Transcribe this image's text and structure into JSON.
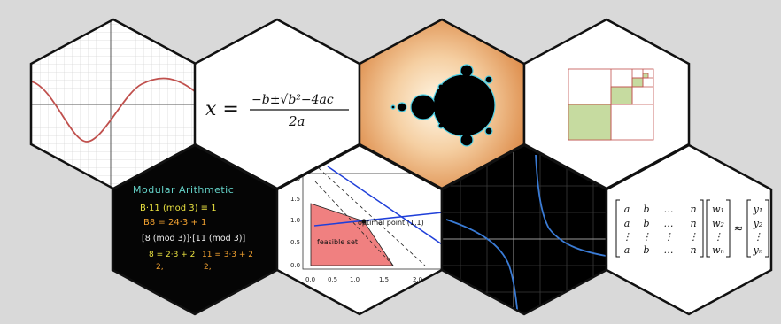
{
  "colors": {
    "background": "#d9d9d9",
    "hex_border": "#111111",
    "sine_curve": "#c0504d",
    "lp_line": "#1f3fd9",
    "feasible_fill": "#f08080",
    "square_fill": "#c6dba0",
    "square_stroke": "#c0504d",
    "chalk_title": "#64d2c8",
    "chalk_white": "#f0f0f0",
    "chalk_orange": "#f0a030",
    "chalk_yellow": "#e8e040",
    "dark_curve": "#3a7bd5"
  },
  "tiles": {
    "quadratic": {
      "lhs": "x =",
      "numerator": "−b±√b²−4ac",
      "denominator": "2a"
    },
    "chalkboard": {
      "title": "Modular Arithmetic",
      "line1": "B·11 (mod 3) ≡ 1",
      "line2": "B8 = 24·3 + 1",
      "line3": "[8 (mod 3)]·[11 (mod 3)]",
      "line4a": "8 = 2·3 + 2",
      "line4b": "11 = 3·3 + 2",
      "sub_a": "2,",
      "sub_b": "2,"
    },
    "lp": {
      "point_label": "optimal point (1,1)",
      "region_label": "feasible set",
      "x_ticks": [
        "0.0",
        "0.5",
        "1.0",
        "1.5",
        "2.0"
      ],
      "y_ticks": [
        "0.0",
        "0.5",
        "1.0",
        "1.5",
        "2.0"
      ]
    },
    "matrix": {
      "row1": [
        "a",
        "b",
        "…",
        "n"
      ],
      "row2": [
        "a",
        "b",
        "…",
        "n"
      ],
      "row3": [
        "⋮",
        "⋮",
        "⋮",
        "⋮"
      ],
      "row4": [
        "a",
        "b",
        "…",
        "n"
      ],
      "w": [
        "w₁",
        "w₂",
        "⋮",
        "wₙ"
      ],
      "approx": "≈",
      "y": [
        "y₁",
        "y₂",
        "⋮",
        "yₙ"
      ]
    }
  }
}
